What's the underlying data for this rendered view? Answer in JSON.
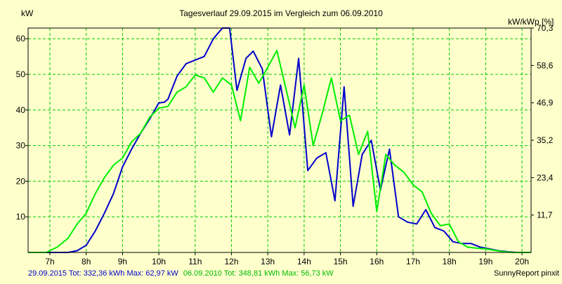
{
  "chart_data": {
    "type": "line",
    "title": "Tagesverlauf 29.09.2015 im Vergleich zum 06.09.2010",
    "left_unit": "kW",
    "right_unit": "kW/kWp [%]",
    "xlim": [
      6.4,
      20.25
    ],
    "ylim": [
      0,
      63
    ],
    "x_ticks": [
      {
        "x": 7,
        "label": "7h"
      },
      {
        "x": 8,
        "label": "8h"
      },
      {
        "x": 9,
        "label": "9h"
      },
      {
        "x": 10,
        "label": "10h"
      },
      {
        "x": 11,
        "label": "11h"
      },
      {
        "x": 12,
        "label": "12h"
      },
      {
        "x": 13,
        "label": "13h"
      },
      {
        "x": 14,
        "label": "14h"
      },
      {
        "x": 15,
        "label": "15h"
      },
      {
        "x": 16,
        "label": "16h"
      },
      {
        "x": 17,
        "label": "17h"
      },
      {
        "x": 18,
        "label": "18h"
      },
      {
        "x": 19,
        "label": "19h"
      },
      {
        "x": 20,
        "label": "20h"
      }
    ],
    "y_ticks_left": [
      {
        "y": 10,
        "label": "10"
      },
      {
        "y": 20,
        "label": "20"
      },
      {
        "y": 30,
        "label": "30"
      },
      {
        "y": 40,
        "label": "40"
      },
      {
        "y": 50,
        "label": "50"
      },
      {
        "y": 60,
        "label": "60"
      }
    ],
    "y_ticks_right": [
      {
        "y": 10.5,
        "label": "11,7"
      },
      {
        "y": 21,
        "label": "23,4"
      },
      {
        "y": 31.5,
        "label": "35,2"
      },
      {
        "y": 42,
        "label": "46,9"
      },
      {
        "y": 52.5,
        "label": "58,6"
      },
      {
        "y": 63,
        "label": "70,3"
      }
    ],
    "grid": true,
    "series": [
      {
        "color": "#0000cc",
        "points": [
          [
            6.4,
            0
          ],
          [
            7.0,
            0
          ],
          [
            7.5,
            0
          ],
          [
            7.75,
            0.5
          ],
          [
            8.0,
            2
          ],
          [
            8.25,
            6
          ],
          [
            8.5,
            11
          ],
          [
            8.75,
            16.5
          ],
          [
            9.0,
            24
          ],
          [
            9.25,
            29
          ],
          [
            9.5,
            33.5
          ],
          [
            9.75,
            37.5
          ],
          [
            10.0,
            42
          ],
          [
            10.15,
            42.2
          ],
          [
            10.25,
            43
          ],
          [
            10.5,
            49.5
          ],
          [
            10.75,
            53
          ],
          [
            11.0,
            54
          ],
          [
            11.25,
            55
          ],
          [
            11.5,
            60
          ],
          [
            11.75,
            63
          ],
          [
            11.95,
            63
          ],
          [
            12.15,
            45.5
          ],
          [
            12.4,
            54.5
          ],
          [
            12.6,
            56.5
          ],
          [
            12.85,
            51.5
          ],
          [
            13.1,
            32.5
          ],
          [
            13.35,
            47
          ],
          [
            13.6,
            33
          ],
          [
            13.85,
            54.5
          ],
          [
            14.1,
            23
          ],
          [
            14.35,
            26.5
          ],
          [
            14.6,
            28
          ],
          [
            14.85,
            14.5
          ],
          [
            15.1,
            46.5
          ],
          [
            15.35,
            13
          ],
          [
            15.6,
            27.5
          ],
          [
            15.85,
            31.5
          ],
          [
            16.1,
            17.5
          ],
          [
            16.35,
            29
          ],
          [
            16.6,
            10
          ],
          [
            16.85,
            8.5
          ],
          [
            17.1,
            8
          ],
          [
            17.35,
            12
          ],
          [
            17.6,
            7
          ],
          [
            17.85,
            6
          ],
          [
            18.1,
            3
          ],
          [
            18.35,
            2.5
          ],
          [
            18.6,
            2.5
          ],
          [
            18.85,
            1.5
          ],
          [
            19.1,
            1
          ],
          [
            19.35,
            0.5
          ],
          [
            19.6,
            0.2
          ],
          [
            19.85,
            0
          ],
          [
            20.25,
            0
          ]
        ]
      },
      {
        "color": "#00ee00",
        "points": [
          [
            6.4,
            0
          ],
          [
            6.9,
            0
          ],
          [
            7.2,
            1.5
          ],
          [
            7.5,
            4
          ],
          [
            7.75,
            8
          ],
          [
            8.0,
            11
          ],
          [
            8.25,
            16.5
          ],
          [
            8.5,
            21
          ],
          [
            8.75,
            24.5
          ],
          [
            9.0,
            26.5
          ],
          [
            9.25,
            31
          ],
          [
            9.5,
            33.5
          ],
          [
            9.75,
            38
          ],
          [
            10.0,
            40.5
          ],
          [
            10.25,
            41
          ],
          [
            10.5,
            45
          ],
          [
            10.75,
            46.5
          ],
          [
            11.0,
            49.8
          ],
          [
            11.25,
            49
          ],
          [
            11.5,
            45
          ],
          [
            11.75,
            49
          ],
          [
            12.0,
            47
          ],
          [
            12.25,
            37
          ],
          [
            12.5,
            52
          ],
          [
            12.75,
            47.5
          ],
          [
            13.0,
            52
          ],
          [
            13.25,
            56.7
          ],
          [
            13.5,
            46
          ],
          [
            13.75,
            35
          ],
          [
            14.0,
            47
          ],
          [
            14.25,
            30
          ],
          [
            14.5,
            39
          ],
          [
            14.75,
            49
          ],
          [
            15.0,
            37
          ],
          [
            15.25,
            38.5
          ],
          [
            15.5,
            27.5
          ],
          [
            15.75,
            34
          ],
          [
            16.0,
            11.5
          ],
          [
            16.25,
            27.5
          ],
          [
            16.5,
            24.5
          ],
          [
            16.75,
            22.5
          ],
          [
            17.0,
            19
          ],
          [
            17.25,
            17
          ],
          [
            17.5,
            11
          ],
          [
            17.75,
            7.5
          ],
          [
            18.0,
            8
          ],
          [
            18.25,
            3
          ],
          [
            18.5,
            1.5
          ],
          [
            18.75,
            1.2
          ],
          [
            19.0,
            1
          ],
          [
            19.25,
            0.6
          ],
          [
            19.5,
            0.2
          ],
          [
            19.75,
            0
          ],
          [
            20.25,
            0
          ]
        ]
      }
    ]
  },
  "footer": {
    "blue_stats": "29.09.2015 Tot: 332,36 kWh Max: 62,97 kW",
    "green_stats": "06.09.2010 Tot: 348,81 kWh Max: 56,73 kW",
    "credit": "SunnyReport pinxit"
  }
}
